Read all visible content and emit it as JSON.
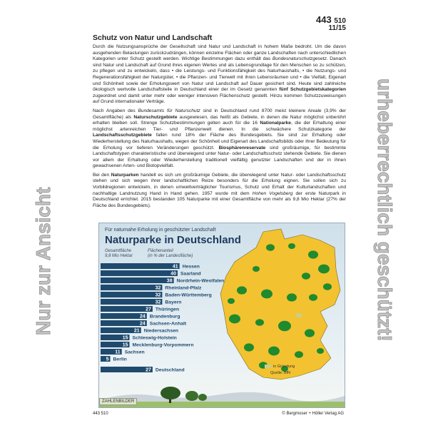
{
  "header": {
    "number_main": "443",
    "number_sub": "510",
    "sheet": "11/15"
  },
  "title": "Schutz von Natur und Landschaft",
  "paragraphs": [
    [
      {
        "t": "Durch die Nutzungsansprüche der Gesellschaft sind Natur und Landschaft in hohem Maße bedroht. Um die davon ausgehenden Belastungen zurückzudrängen, können einzelne Flächen oder ganze Landschaften nach unterschiedlichen Kategorien unter Schutz gestellt werden. Wichtige Bestimmungen dazu enthält das "
      },
      {
        "t": "Bundesnaturschutzgesetz",
        "i": true
      },
      {
        "t": ". Danach sind Natur und Landschaft auf Grund ihres eigenen Wertes und als Lebensgrundlage für den Menschen so zu schützen, zu pflegen und zu entwickeln, dass • die Leistungs- und Funktionsfähigkeit des Naturhaushalts, • die Nutzungs- und Regenerationsfähigkeit der Naturgüter, • die Pflanzen- und Tierwelt mit ihren Lebensräumen und • die Vielfalt, Eigenart und Schönheit sowie der Erholungswert von Natur und Landschaft auf Dauer gesichert sind. Heute sind zahlreiche ökologisch wertvolle Landschaftsteile in Deutschland einer der im Gesetz genannten "
      },
      {
        "t": "fünf Schutzgebietskategorien",
        "b": true
      },
      {
        "t": " zugeordnet und damit unter mehr oder weniger intensiven Flächenschutz gestellt. Hinzu kommen Schutzzuweisungen auf Grund internationaler Verträge."
      }
    ],
    [
      {
        "t": "Nach Angaben des "
      },
      {
        "t": "Bundesamts für Naturschutz",
        "i": true
      },
      {
        "t": " sind in Deutschland rund 8700 meist kleinere Areale (3,9% der Gesamtfläche) als "
      },
      {
        "t": "Naturschutzgebiete",
        "b": true
      },
      {
        "t": " ausgewiesen, das heißt als Gebiete, in denen die Natur möglichst unberührt erhalten bleiben soll. Strenge Schutzbestimmungen gelten auch für die 16 "
      },
      {
        "t": "Nationalparke",
        "b": true
      },
      {
        "t": ", die der Erhaltung einer möglichst artenreichen Tier- und Pflanzenwelt dienen. In die schwächere Schutzkategorie der "
      },
      {
        "t": "Landschaftsschutzgebiete",
        "b": true
      },
      {
        "t": " fallen rund 18% der Fläche des Bundesgebiets. Sie sind zur Erhaltung oder Wiederherstellung des Naturhaushalts, wegen der Schönheit und Eigenart des Landschaftsbilds oder ihrer Bedeutung für die Erholung vor tieferen Veränderungen geschützt. "
      },
      {
        "t": "Biosphärenreservate",
        "b": true
      },
      {
        "t": " sind großräumige, für bestimmte Landschaftstypen charakteristische und überwiegend unter Natur- oder Landschaftsschutz stehende Gebiete. Sie dienen vor allem der Erhaltung oder Wiederherstellung traditionell vielfältig genutzter Landschaften und der in ihnen gewachsenen Arten- und Biotopvielfalt."
      }
    ],
    [
      {
        "t": "Bei den "
      },
      {
        "t": "Naturparken",
        "b": true
      },
      {
        "t": " handelt es sich um großräumige Gebiete, die überwiegend unter Natur- oder Landschaftsschutz stehen und sich wegen ihrer landschaftlichen Reize besonders für die Erholung eignen. Sie sollen sich zu Vorbildregionen entwickeln, in denen umweltverträglicher Tourismus, Schutz und Erhalt der Kulturlandschaften und nachhaltige Landnutzung Hand in Hand gehen. 1957 wurde mit dem "
      },
      {
        "t": "Hohen Vogelsberg",
        "i": true
      },
      {
        "t": " der erste Naturpark in Deutschland errichtet. 2015 bestanden 105 Naturparke mit einer Gesamtfläche von mehr als 9,8 Mio Hektar (27% der Fläche des Bundesgebiets)."
      }
    ]
  ],
  "chart_data": {
    "type": "bar",
    "subtitle": "Für naturnahe Erholung in geschützter Landschaft",
    "title": "Naturparke in Deutschland",
    "left_header": [
      "Gesamtfläche",
      "9,8 Mio Hektar"
    ],
    "right_header": [
      "Flächenanteil",
      "(in % der Landesfläche)"
    ],
    "categories": [
      "Hessen",
      "Saarland",
      "Nordrhein-Westfalen",
      "Rheinland-Pfalz",
      "Baden-Württemberg",
      "Bayern",
      "Thüringen",
      "Brandenburg",
      "Sachsen-Anhalt",
      "Niedersachsen",
      "Schleswig-Holstein",
      "Mecklenburg-Vorpommern",
      "Sachsen",
      "Berlin"
    ],
    "values": [
      41,
      40,
      38,
      32,
      32,
      32,
      27,
      24,
      24,
      21,
      15,
      15,
      11,
      5
    ],
    "total": {
      "label": "Deutschland",
      "value": 27
    },
    "legend": "in Gründung",
    "source": "Quelle: BfN",
    "colors": {
      "bar": "#1f4a6e",
      "label": "#1f4a6e",
      "map_land": "#f2c230",
      "map_park": "#1f8a2e",
      "in_gruendung": "#c9cf8a"
    }
  },
  "logo": "ZAHLENBILDER",
  "footer": {
    "number": "443 510",
    "copyright": "© Bergmoser + Höller Verlag AG"
  },
  "watermarks": [
    "Nur zur Ansicht",
    "urheberrechtlich geschützt!"
  ]
}
